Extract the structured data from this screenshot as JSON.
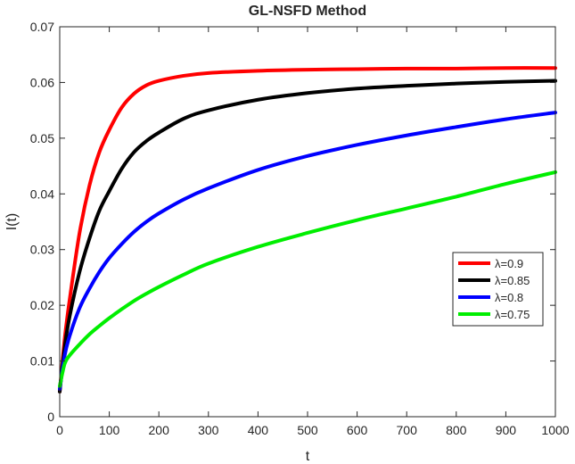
{
  "chart_data": {
    "type": "line",
    "title": "GL-NSFD Method",
    "xlabel": "t",
    "ylabel": "I(t)",
    "xlim": [
      0,
      1000
    ],
    "ylim": [
      0,
      0.07
    ],
    "x_ticks": [
      "0",
      "100",
      "200",
      "300",
      "400",
      "500",
      "600",
      "700",
      "800",
      "900",
      "1000"
    ],
    "y_ticks": [
      "0",
      "0.01",
      "0.02",
      "0.03",
      "0.04",
      "0.05",
      "0.06",
      "0.07"
    ],
    "grid": false,
    "legend_position": "right-middle",
    "series": [
      {
        "name": "λ=0.9",
        "color": "#ff0000",
        "x": [
          0,
          10,
          20,
          40,
          60,
          80,
          100,
          125,
          150,
          175,
          200,
          250,
          300,
          400,
          500,
          600,
          700,
          800,
          900,
          1000
        ],
        "y": [
          0.0045,
          0.014,
          0.021,
          0.033,
          0.0415,
          0.0475,
          0.0515,
          0.0555,
          0.058,
          0.0595,
          0.0603,
          0.0612,
          0.0617,
          0.0621,
          0.0623,
          0.0624,
          0.0625,
          0.0625,
          0.0626,
          0.0626
        ]
      },
      {
        "name": "λ=0.85",
        "color": "#000000",
        "x": [
          0,
          10,
          20,
          40,
          60,
          80,
          100,
          125,
          150,
          175,
          200,
          250,
          300,
          400,
          500,
          600,
          700,
          800,
          900,
          1000
        ],
        "y": [
          0.0045,
          0.0125,
          0.018,
          0.026,
          0.032,
          0.037,
          0.0405,
          0.0445,
          0.0475,
          0.0495,
          0.051,
          0.0535,
          0.055,
          0.0569,
          0.0581,
          0.0589,
          0.0594,
          0.0598,
          0.0601,
          0.0603
        ]
      },
      {
        "name": "λ=0.8",
        "color": "#0000ff",
        "x": [
          0,
          10,
          20,
          40,
          60,
          80,
          100,
          125,
          150,
          175,
          200,
          250,
          300,
          400,
          500,
          600,
          700,
          800,
          900,
          1000
        ],
        "y": [
          0.005,
          0.011,
          0.0145,
          0.0195,
          0.023,
          0.026,
          0.0285,
          0.031,
          0.0332,
          0.035,
          0.0365,
          0.039,
          0.041,
          0.0443,
          0.0468,
          0.0488,
          0.0505,
          0.052,
          0.0534,
          0.0546
        ]
      },
      {
        "name": "λ=0.75",
        "color": "#00ee00",
        "x": [
          0,
          10,
          20,
          40,
          60,
          80,
          100,
          125,
          150,
          175,
          200,
          250,
          300,
          400,
          500,
          600,
          700,
          800,
          900,
          1000
        ],
        "y": [
          0.0055,
          0.0095,
          0.011,
          0.013,
          0.0148,
          0.0163,
          0.0177,
          0.0193,
          0.0208,
          0.0221,
          0.0233,
          0.0255,
          0.0275,
          0.0305,
          0.033,
          0.0353,
          0.0374,
          0.0395,
          0.0418,
          0.0439
        ]
      }
    ]
  }
}
